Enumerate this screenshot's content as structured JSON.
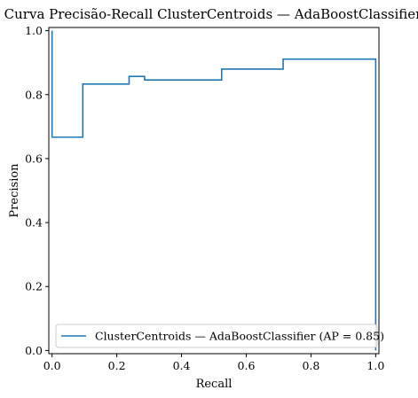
{
  "chart_data": {
    "type": "line",
    "title": "Curva Precisão-Recall ClusterCentroids — AdaBoostClassifier",
    "xlabel": "Recall",
    "ylabel": "Precision",
    "xlim": [
      -0.01,
      1.01
    ],
    "ylim": [
      -0.01,
      1.01
    ],
    "xticks": [
      0.0,
      0.2,
      0.4,
      0.6,
      0.8,
      1.0
    ],
    "xtick_labels": [
      "0.0",
      "0.2",
      "0.4",
      "0.6",
      "0.8",
      "1.0"
    ],
    "yticks": [
      0.0,
      0.2,
      0.4,
      0.6,
      0.8,
      1.0
    ],
    "ytick_labels": [
      "0.0",
      "0.2",
      "0.4",
      "0.6",
      "0.8",
      "1.0"
    ],
    "grid": false,
    "legend_position": "lower-right",
    "series": [
      {
        "name": "ClusterCentroids — AdaBoostClassifier (AP = 0.85)",
        "color": "#1f77b4",
        "drawstyle": "steps-post",
        "x": [
          0.0,
          0.0,
          0.095,
          0.095,
          0.238,
          0.238,
          0.286,
          0.286,
          0.524,
          0.524,
          0.714,
          0.714,
          1.0,
          1.0
        ],
        "y": [
          1.0,
          0.667,
          0.667,
          0.833,
          0.833,
          0.857,
          0.857,
          0.846,
          0.846,
          0.88,
          0.88,
          0.911,
          0.911,
          0.0
        ]
      }
    ]
  }
}
